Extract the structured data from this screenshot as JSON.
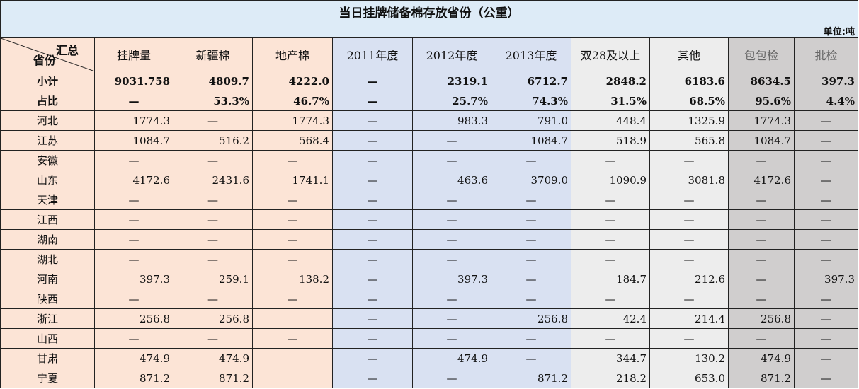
{
  "title": "当日挂牌储备棉存放省份（公重）",
  "unit": "单位:吨",
  "corner": {
    "top": "汇总",
    "bottom": "省份"
  },
  "columns": [
    "挂牌量",
    "新疆棉",
    "地产棉",
    "2011年度",
    "2012年度",
    "2013年度",
    "双28及以上",
    "其他",
    "包包检",
    "批检"
  ],
  "colors": {
    "peach": "#FCE4D6",
    "lavender": "#D9E1F2",
    "light_gray": "#EDEDED",
    "gray": "#D0CECE",
    "title_bg": "#DDEBF7"
  },
  "rows": [
    {
      "name": "小计",
      "bold": true,
      "values": [
        "9031.758",
        "4809.7",
        "4222.0",
        "—",
        "2319.1",
        "6712.7",
        "2848.2",
        "6183.6",
        "8634.5",
        "397.3"
      ]
    },
    {
      "name": "占比",
      "bold": true,
      "values": [
        "—",
        "53.3%",
        "46.7%",
        "—",
        "25.7%",
        "74.3%",
        "31.5%",
        "68.5%",
        "95.6%",
        "4.4%"
      ]
    },
    {
      "name": "河北",
      "values": [
        "1774.3",
        "—",
        "1774.3",
        "—",
        "983.3",
        "791.0",
        "448.4",
        "1325.9",
        "1774.3",
        "—"
      ]
    },
    {
      "name": "江苏",
      "values": [
        "1084.7",
        "516.2",
        "568.4",
        "—",
        "—",
        "1084.7",
        "518.9",
        "565.8",
        "1084.7",
        "—"
      ]
    },
    {
      "name": "安徽",
      "values": [
        "—",
        "—",
        "—",
        "—",
        "—",
        "—",
        "—",
        "—",
        "—",
        "—"
      ]
    },
    {
      "name": "山东",
      "values": [
        "4172.6",
        "2431.6",
        "1741.1",
        "—",
        "463.6",
        "3709.0",
        "1090.9",
        "3081.8",
        "4172.6",
        "—"
      ]
    },
    {
      "name": "天津",
      "values": [
        "—",
        "—",
        "—",
        "—",
        "—",
        "—",
        "—",
        "—",
        "—",
        "—"
      ]
    },
    {
      "name": "江西",
      "values": [
        "—",
        "—",
        "—",
        "—",
        "—",
        "—",
        "—",
        "—",
        "—",
        "—"
      ]
    },
    {
      "name": "湖南",
      "values": [
        "—",
        "—",
        "—",
        "—",
        "—",
        "—",
        "—",
        "—",
        "—",
        "—"
      ]
    },
    {
      "name": "湖北",
      "values": [
        "—",
        "—",
        "—",
        "—",
        "—",
        "—",
        "—",
        "—",
        "—",
        "—"
      ]
    },
    {
      "name": "河南",
      "values": [
        "397.3",
        "259.1",
        "138.2",
        "—",
        "397.3",
        "—",
        "184.7",
        "212.6",
        "—",
        "397.3"
      ]
    },
    {
      "name": "陕西",
      "values": [
        "—",
        "—",
        "—",
        "—",
        "—",
        "—",
        "—",
        "—",
        "—",
        "—"
      ]
    },
    {
      "name": "浙江",
      "values": [
        "256.8",
        "256.8",
        "",
        "—",
        "—",
        "256.8",
        "42.4",
        "214.4",
        "256.8",
        "—"
      ]
    },
    {
      "name": "山西",
      "values": [
        "—",
        "—",
        "—",
        "—",
        "—",
        "—",
        "—",
        "—",
        "—",
        "—"
      ]
    },
    {
      "name": "甘肃",
      "values": [
        "474.9",
        "474.9",
        "",
        "—",
        "474.9",
        "—",
        "344.7",
        "130.2",
        "474.9",
        "—"
      ]
    },
    {
      "name": "宁夏",
      "values": [
        "871.2",
        "871.2",
        "",
        "—",
        "—",
        "871.2",
        "218.2",
        "653.0",
        "871.2",
        "—"
      ]
    }
  ]
}
